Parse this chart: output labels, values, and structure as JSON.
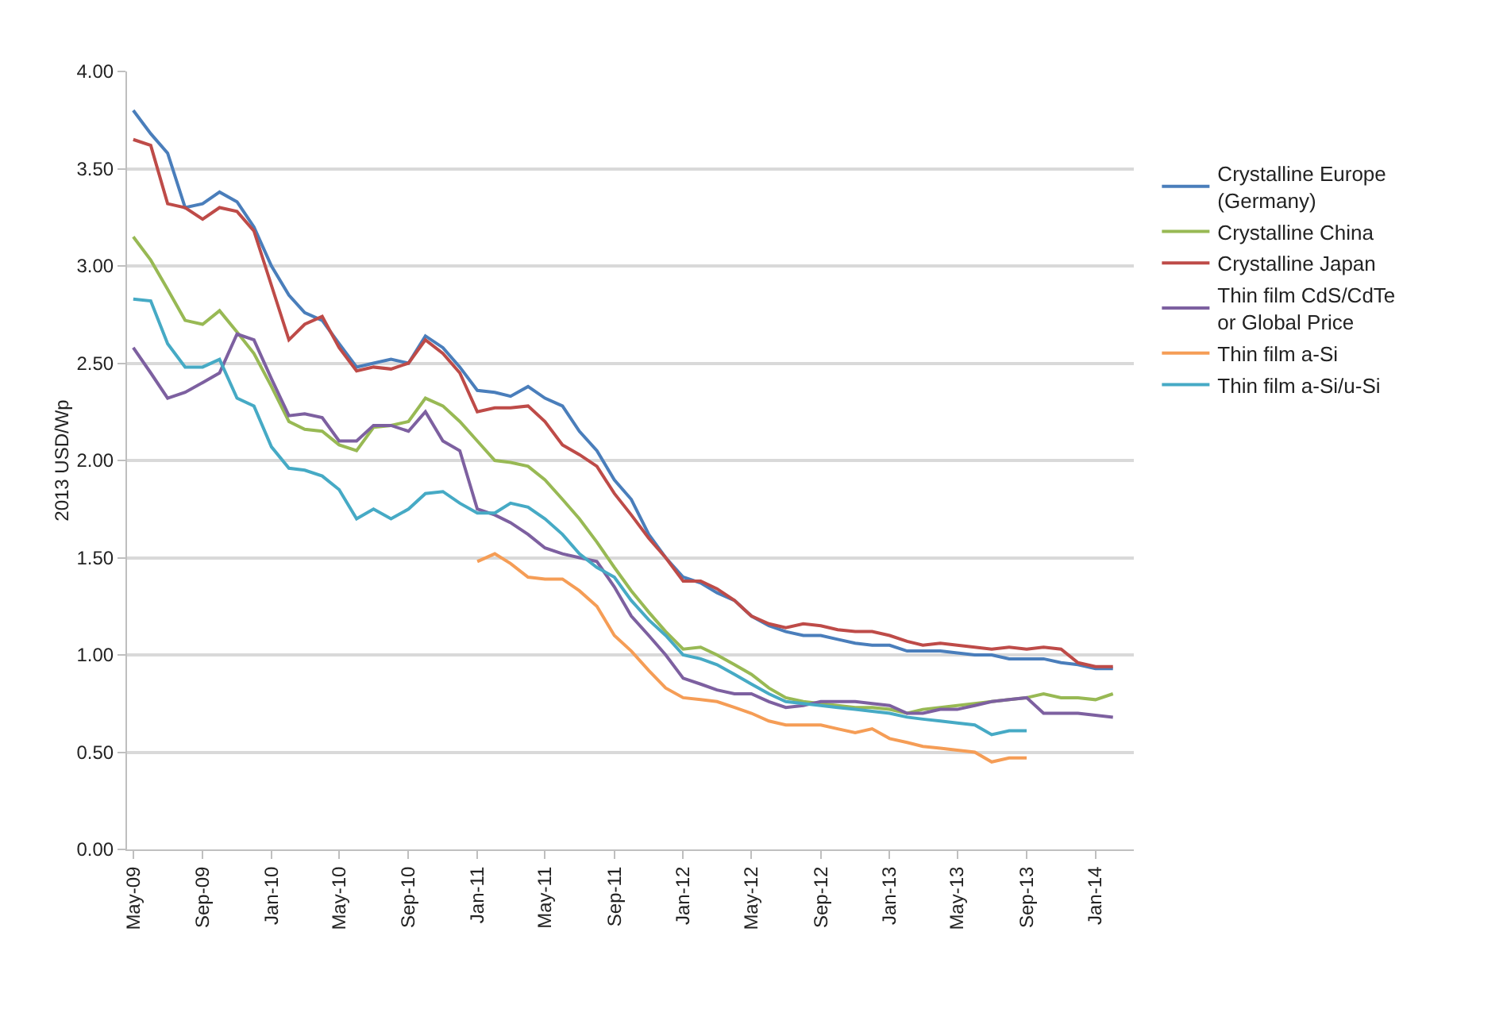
{
  "chart_data": {
    "type": "line",
    "ylabel": "2013 USD/Wp",
    "x": [
      "2009-05",
      "2009-06",
      "2009-07",
      "2009-08",
      "2009-09",
      "2009-10",
      "2009-11",
      "2009-12",
      "2010-01",
      "2010-02",
      "2010-03",
      "2010-04",
      "2010-05",
      "2010-06",
      "2010-07",
      "2010-08",
      "2010-09",
      "2010-10",
      "2010-11",
      "2010-12",
      "2011-01",
      "2011-02",
      "2011-03",
      "2011-04",
      "2011-05",
      "2011-06",
      "2011-07",
      "2011-08",
      "2011-09",
      "2011-10",
      "2011-11",
      "2011-12",
      "2012-01",
      "2012-02",
      "2012-03",
      "2012-04",
      "2012-05",
      "2012-06",
      "2012-07",
      "2012-08",
      "2012-09",
      "2012-10",
      "2012-11",
      "2012-12",
      "2013-01",
      "2013-02",
      "2013-03",
      "2013-04",
      "2013-05",
      "2013-06",
      "2013-07",
      "2013-08",
      "2013-09",
      "2013-10",
      "2013-11",
      "2013-12",
      "2014-01",
      "2014-02"
    ],
    "series": [
      {
        "name": "Crystalline Europe (Germany)",
        "color": "#4a7ebb",
        "values": [
          3.8,
          3.68,
          3.58,
          3.3,
          3.32,
          3.38,
          3.33,
          3.2,
          3.0,
          2.85,
          2.76,
          2.72,
          2.6,
          2.48,
          2.5,
          2.52,
          2.5,
          2.64,
          2.58,
          2.48,
          2.36,
          2.35,
          2.33,
          2.38,
          2.32,
          2.28,
          2.15,
          2.05,
          1.9,
          1.8,
          1.62,
          1.5,
          1.4,
          1.37,
          1.32,
          1.28,
          1.2,
          1.15,
          1.12,
          1.1,
          1.1,
          1.08,
          1.06,
          1.05,
          1.05,
          1.02,
          1.02,
          1.02,
          1.01,
          1.0,
          1.0,
          0.98,
          0.98,
          0.98,
          0.96,
          0.95,
          0.93,
          0.93
        ]
      },
      {
        "name": "Crystalline China",
        "color": "#98b954",
        "values": [
          3.15,
          3.03,
          2.88,
          2.72,
          2.7,
          2.77,
          2.66,
          2.55,
          2.38,
          2.2,
          2.16,
          2.15,
          2.08,
          2.05,
          2.17,
          2.18,
          2.2,
          2.32,
          2.28,
          2.2,
          2.1,
          2.0,
          1.99,
          1.97,
          1.9,
          1.8,
          1.7,
          1.58,
          1.45,
          1.33,
          1.22,
          1.12,
          1.03,
          1.04,
          1.0,
          0.95,
          0.9,
          0.83,
          0.78,
          0.76,
          0.75,
          0.74,
          0.73,
          0.73,
          0.72,
          0.7,
          0.72,
          0.73,
          0.74,
          0.75,
          0.76,
          0.77,
          0.78,
          0.8,
          0.78,
          0.78,
          0.77,
          0.8
        ]
      },
      {
        "name": "Crystalline Japan",
        "color": "#be4b48",
        "values": [
          3.65,
          3.62,
          3.32,
          3.3,
          3.24,
          3.3,
          3.28,
          3.18,
          2.9,
          2.62,
          2.7,
          2.74,
          2.58,
          2.46,
          2.48,
          2.47,
          2.5,
          2.62,
          2.55,
          2.45,
          2.25,
          2.27,
          2.27,
          2.28,
          2.2,
          2.08,
          2.03,
          1.97,
          1.83,
          1.72,
          1.6,
          1.5,
          1.38,
          1.38,
          1.34,
          1.28,
          1.2,
          1.16,
          1.14,
          1.16,
          1.15,
          1.13,
          1.12,
          1.12,
          1.1,
          1.07,
          1.05,
          1.06,
          1.05,
          1.04,
          1.03,
          1.04,
          1.03,
          1.04,
          1.03,
          0.96,
          0.94,
          0.94
        ]
      },
      {
        "name": "Thin film CdS/CdTe or Global Price",
        "color": "#7d60a0",
        "values": [
          2.58,
          2.45,
          2.32,
          2.35,
          2.4,
          2.45,
          2.65,
          2.62,
          2.42,
          2.23,
          2.24,
          2.22,
          2.1,
          2.1,
          2.18,
          2.18,
          2.15,
          2.25,
          2.1,
          2.05,
          1.75,
          1.72,
          1.68,
          1.62,
          1.55,
          1.52,
          1.5,
          1.48,
          1.35,
          1.2,
          1.1,
          1.0,
          0.88,
          0.85,
          0.82,
          0.8,
          0.8,
          0.76,
          0.73,
          0.74,
          0.76,
          0.76,
          0.76,
          0.75,
          0.74,
          0.7,
          0.7,
          0.72,
          0.72,
          0.74,
          0.76,
          0.77,
          0.78,
          0.7,
          0.7,
          0.7,
          0.69,
          0.68
        ]
      },
      {
        "name": "Thin film a-Si",
        "color": "#f59d56",
        "values": [
          null,
          null,
          null,
          null,
          null,
          null,
          null,
          null,
          null,
          null,
          null,
          null,
          null,
          null,
          null,
          null,
          null,
          null,
          null,
          null,
          1.48,
          1.52,
          1.47,
          1.4,
          1.39,
          1.39,
          1.33,
          1.25,
          1.1,
          1.02,
          0.92,
          0.83,
          0.78,
          0.77,
          0.76,
          0.73,
          0.7,
          0.66,
          0.64,
          0.64,
          0.64,
          0.62,
          0.6,
          0.62,
          0.57,
          0.55,
          0.53,
          0.52,
          0.51,
          0.5,
          0.45,
          0.47,
          0.47,
          null,
          null,
          null,
          null,
          null
        ]
      },
      {
        "name": "Thin film a-Si/u-Si",
        "color": "#46aac5",
        "values": [
          2.83,
          2.82,
          2.6,
          2.48,
          2.48,
          2.52,
          2.32,
          2.28,
          2.07,
          1.96,
          1.95,
          1.92,
          1.85,
          1.7,
          1.75,
          1.7,
          1.75,
          1.83,
          1.84,
          1.78,
          1.73,
          1.73,
          1.78,
          1.76,
          1.7,
          1.62,
          1.52,
          1.45,
          1.4,
          1.28,
          1.18,
          1.1,
          1.0,
          0.98,
          0.95,
          0.9,
          0.85,
          0.8,
          0.76,
          0.75,
          0.74,
          0.73,
          0.72,
          0.71,
          0.7,
          0.68,
          0.67,
          0.66,
          0.65,
          0.64,
          0.59,
          0.61,
          0.61,
          null,
          null,
          null,
          null,
          null
        ]
      }
    ],
    "xlim": [
      "2009-04-20",
      "2014-03-10"
    ],
    "xticks": [
      {
        "value": "2009-05",
        "label": "May-09"
      },
      {
        "value": "2009-09",
        "label": "Sep-09"
      },
      {
        "value": "2010-01",
        "label": "Jan-10"
      },
      {
        "value": "2010-05",
        "label": "May-10"
      },
      {
        "value": "2010-09",
        "label": "Sep-10"
      },
      {
        "value": "2011-01",
        "label": "Jan-11"
      },
      {
        "value": "2011-05",
        "label": "May-11"
      },
      {
        "value": "2011-09",
        "label": "Sep-11"
      },
      {
        "value": "2012-01",
        "label": "Jan-12"
      },
      {
        "value": "2012-05",
        "label": "May-12"
      },
      {
        "value": "2012-09",
        "label": "Sep-12"
      },
      {
        "value": "2013-01",
        "label": "Jan-13"
      },
      {
        "value": "2013-05",
        "label": "May-13"
      },
      {
        "value": "2013-09",
        "label": "Sep-13"
      },
      {
        "value": "2014-01",
        "label": "Jan-14"
      }
    ],
    "ylim": [
      0,
      4
    ],
    "yticks": [
      {
        "value": 0,
        "label": "0.00"
      },
      {
        "value": 0.5,
        "label": "0.50"
      },
      {
        "value": 1,
        "label": "1.00"
      },
      {
        "value": 1.5,
        "label": "1.50"
      },
      {
        "value": 2,
        "label": "2.00"
      },
      {
        "value": 2.5,
        "label": "2.50"
      },
      {
        "value": 3,
        "label": "3.00"
      },
      {
        "value": 3.5,
        "label": "3.50"
      },
      {
        "value": 4,
        "label": "4.00"
      }
    ],
    "grid": "y",
    "legend": "right",
    "marker": "none",
    "line_style": "solid"
  }
}
